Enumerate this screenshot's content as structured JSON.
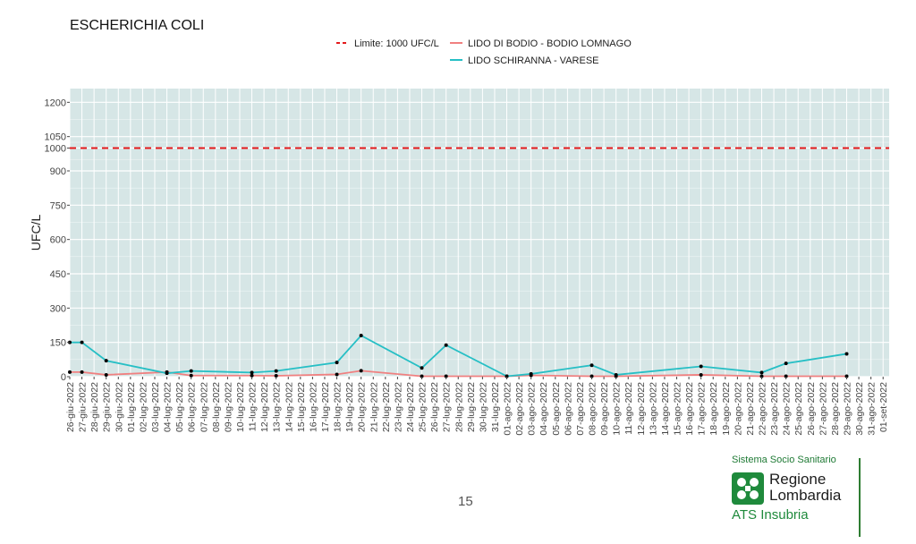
{
  "page": {
    "page_number": "15"
  },
  "logo": {
    "system": "Sistema Socio Sanitario",
    "region_line1": "Regione",
    "region_line2": "Lombardia",
    "agency": "ATS Insubria",
    "color": "#1f8a3c"
  },
  "chart_data": {
    "type": "line",
    "title": "ESCHERICHIA COLI",
    "xlabel": "",
    "ylabel": "UFC/L",
    "ylim": [
      0,
      1260
    ],
    "yticks": [
      0,
      150,
      300,
      450,
      600,
      750,
      900,
      1000,
      1050,
      1200
    ],
    "grid": true,
    "legend_placement": "top",
    "x": [
      "26-giu-2022",
      "27-giu-2022",
      "28-giu-2022",
      "29-giu-2022",
      "30-giu-2022",
      "01-lug-2022",
      "02-lug-2022",
      "03-lug-2022",
      "04-lug-2022",
      "05-lug-2022",
      "06-lug-2022",
      "07-lug-2022",
      "08-lug-2022",
      "09-lug-2022",
      "10-lug-2022",
      "11-lug-2022",
      "12-lug-2022",
      "13-lug-2022",
      "14-lug-2022",
      "15-lug-2022",
      "16-lug-2022",
      "17-lug-2022",
      "18-lug-2022",
      "19-lug-2022",
      "20-lug-2022",
      "21-lug-2022",
      "22-lug-2022",
      "23-lug-2022",
      "24-lug-2022",
      "25-lug-2022",
      "26-lug-2022",
      "27-lug-2022",
      "28-lug-2022",
      "29-lug-2022",
      "30-lug-2022",
      "31-lug-2022",
      "01-ago-2022",
      "02-ago-2022",
      "03-ago-2022",
      "04-ago-2022",
      "05-ago-2022",
      "06-ago-2022",
      "07-ago-2022",
      "08-ago-2022",
      "09-ago-2022",
      "10-ago-2022",
      "11-ago-2022",
      "12-ago-2022",
      "13-ago-2022",
      "14-ago-2022",
      "15-ago-2022",
      "16-ago-2022",
      "17-ago-2022",
      "18-ago-2022",
      "19-ago-2022",
      "20-ago-2022",
      "21-ago-2022",
      "22-ago-2022",
      "23-ago-2022",
      "24-ago-2022",
      "25-ago-2022",
      "26-ago-2022",
      "27-ago-2022",
      "28-ago-2022",
      "29-ago-2022",
      "30-ago-2022",
      "31-ago-2022",
      "01-set-2022"
    ],
    "limit": {
      "name": "Limite: 1000 UFC/L",
      "value": 1000,
      "color": "#e41a1c"
    },
    "series": [
      {
        "name": "LIDO DI BODIO - BODIO LOMNAGO",
        "color": "#f08080",
        "points": [
          {
            "x": "26-giu-2022",
            "y": 20
          },
          {
            "x": "27-giu-2022",
            "y": 20
          },
          {
            "x": "29-giu-2022",
            "y": 8
          },
          {
            "x": "04-lug-2022",
            "y": 20
          },
          {
            "x": "06-lug-2022",
            "y": 5
          },
          {
            "x": "11-lug-2022",
            "y": 5
          },
          {
            "x": "13-lug-2022",
            "y": 4
          },
          {
            "x": "18-lug-2022",
            "y": 10
          },
          {
            "x": "20-lug-2022",
            "y": 26
          },
          {
            "x": "25-lug-2022",
            "y": 2
          },
          {
            "x": "27-lug-2022",
            "y": 2
          },
          {
            "x": "01-ago-2022",
            "y": 2
          },
          {
            "x": "03-ago-2022",
            "y": 6
          },
          {
            "x": "08-ago-2022",
            "y": 2
          },
          {
            "x": "10-ago-2022",
            "y": 2
          },
          {
            "x": "17-ago-2022",
            "y": 8
          },
          {
            "x": "22-ago-2022",
            "y": 2
          },
          {
            "x": "24-ago-2022",
            "y": 2
          },
          {
            "x": "29-ago-2022",
            "y": 2
          }
        ]
      },
      {
        "name": "LIDO SCHIRANNA - VARESE",
        "color": "#26bfc5",
        "points": [
          {
            "x": "26-giu-2022",
            "y": 150
          },
          {
            "x": "27-giu-2022",
            "y": 150
          },
          {
            "x": "29-giu-2022",
            "y": 70
          },
          {
            "x": "04-lug-2022",
            "y": 15
          },
          {
            "x": "06-lug-2022",
            "y": 25
          },
          {
            "x": "11-lug-2022",
            "y": 18
          },
          {
            "x": "13-lug-2022",
            "y": 25
          },
          {
            "x": "18-lug-2022",
            "y": 62
          },
          {
            "x": "20-lug-2022",
            "y": 180
          },
          {
            "x": "25-lug-2022",
            "y": 38
          },
          {
            "x": "27-lug-2022",
            "y": 138
          },
          {
            "x": "01-ago-2022",
            "y": 2
          },
          {
            "x": "03-ago-2022",
            "y": 12
          },
          {
            "x": "08-ago-2022",
            "y": 50
          },
          {
            "x": "10-ago-2022",
            "y": 8
          },
          {
            "x": "17-ago-2022",
            "y": 45
          },
          {
            "x": "22-ago-2022",
            "y": 18
          },
          {
            "x": "24-ago-2022",
            "y": 58
          },
          {
            "x": "29-ago-2022",
            "y": 100
          }
        ]
      }
    ],
    "panel_color": "#d6e6e6",
    "grid_color": "#ffffff"
  }
}
